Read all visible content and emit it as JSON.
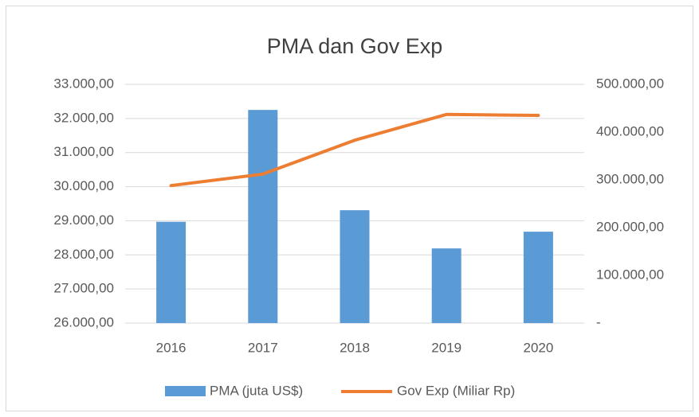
{
  "chart_data": {
    "type": "bar-line",
    "title": "PMA dan Gov Exp",
    "categories": [
      "2016",
      "2017",
      "2018",
      "2019",
      "2020"
    ],
    "series": [
      {
        "name": "PMA (juta US$)",
        "type": "bar",
        "color": "#5b9bd5",
        "values": [
          28970,
          32250,
          29310,
          28190,
          28680
        ]
      },
      {
        "name": "Gov Exp (Miliar Rp)",
        "type": "line",
        "axis": "y2",
        "color": "#ed7d31",
        "values": [
          288000,
          312000,
          383000,
          437000,
          435000
        ]
      }
    ],
    "ylim": [
      26000,
      33000
    ],
    "yticks": [
      {
        "value": 26000,
        "label": "26.000,00"
      },
      {
        "value": 27000,
        "label": "27.000,00"
      },
      {
        "value": 28000,
        "label": "28.000,00"
      },
      {
        "value": 29000,
        "label": "29.000,00"
      },
      {
        "value": 30000,
        "label": "30.000,00"
      },
      {
        "value": 31000,
        "label": "31.000,00"
      },
      {
        "value": 32000,
        "label": "32.000,00"
      },
      {
        "value": 33000,
        "label": "33.000,00"
      }
    ],
    "y2lim": [
      0,
      500000
    ],
    "y2ticks": [
      {
        "value": 0,
        "label": "-"
      },
      {
        "value": 100000,
        "label": "100.000,00"
      },
      {
        "value": 200000,
        "label": "200.000,00"
      },
      {
        "value": 300000,
        "label": "300.000,00"
      },
      {
        "value": 400000,
        "label": "400.000,00"
      },
      {
        "value": 500000,
        "label": "500.000,00"
      }
    ],
    "grid": true,
    "legend": "bottom"
  }
}
